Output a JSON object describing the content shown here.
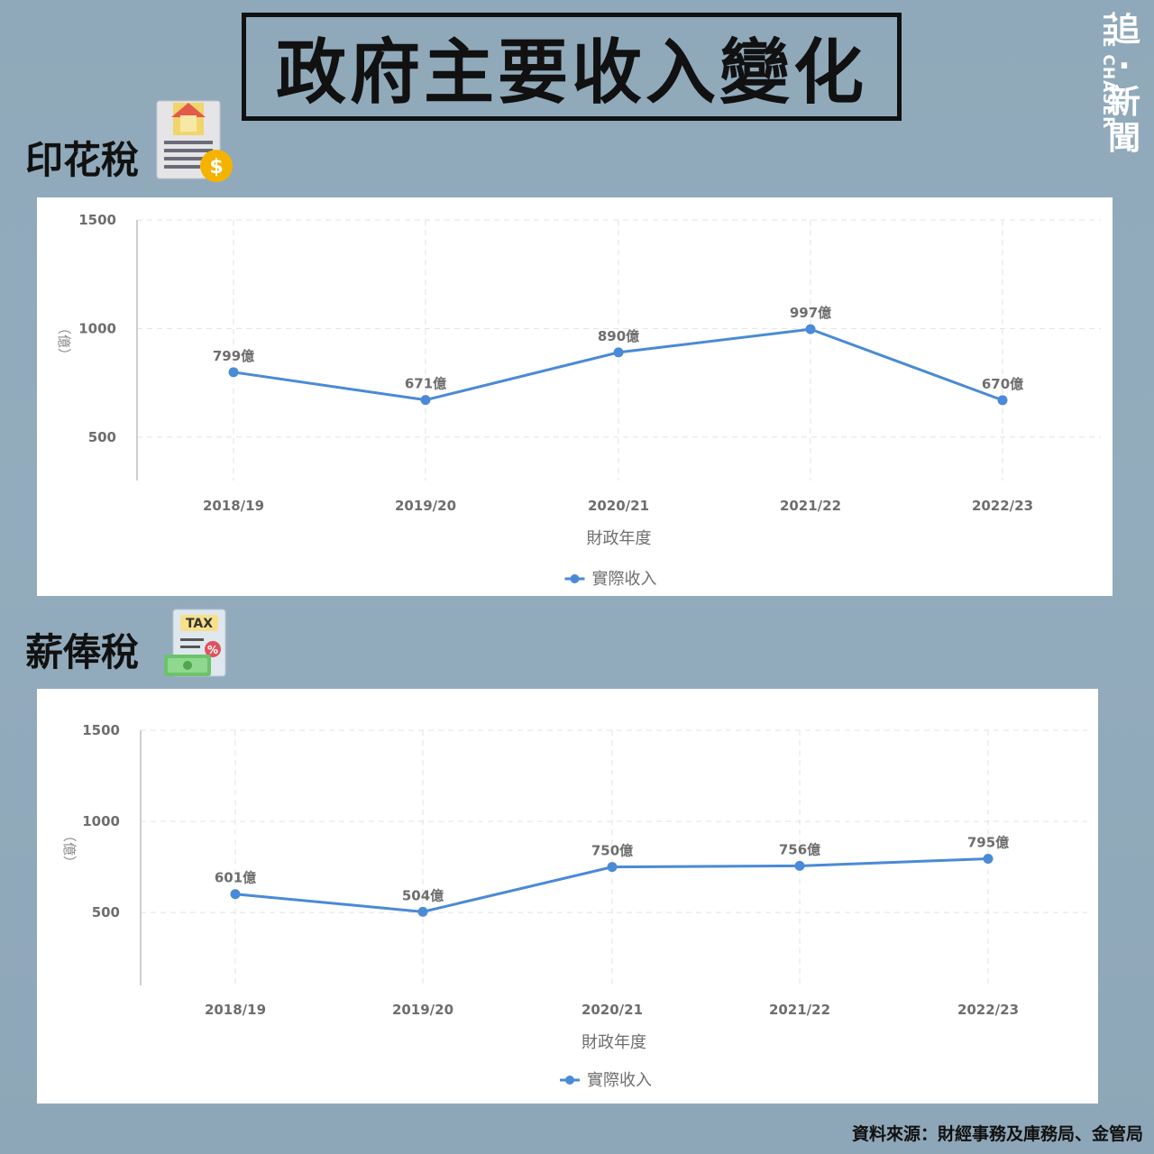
{
  "title": "政府主要收入變化",
  "brand": {
    "cn": "追·新聞",
    "en": "THE CHASER"
  },
  "source": "資料來源：財經事務及庫務局、金管局",
  "icons": {
    "stamp": "property-tax-document-icon",
    "salary": "tax-bill-money-icon"
  },
  "colors": {
    "series": "#4a8ad6",
    "background": "#8fa9ba"
  },
  "chart_data": [
    {
      "type": "line",
      "title": "印花稅",
      "categories": [
        "2018/19",
        "2019/20",
        "2020/21",
        "2021/22",
        "2022/23"
      ],
      "series": [
        {
          "name": "實際收入",
          "values": [
            799,
            671,
            890,
            997,
            670
          ]
        }
      ],
      "value_suffix": "億",
      "xlabel": "財政年度",
      "ylabel": "（億）",
      "yticks": [
        "500",
        "1000",
        "1500"
      ],
      "ylim": [
        300,
        1500
      ],
      "grid": true,
      "legend": "bottom-center"
    },
    {
      "type": "line",
      "title": "薪俸稅",
      "categories": [
        "2018/19",
        "2019/20",
        "2020/21",
        "2021/22",
        "2022/23"
      ],
      "series": [
        {
          "name": "實際收入",
          "values": [
            601,
            504,
            750,
            756,
            795
          ]
        }
      ],
      "value_suffix": "億",
      "xlabel": "財政年度",
      "ylabel": "（億）",
      "yticks": [
        "500",
        "1000",
        "1500"
      ],
      "ylim": [
        100,
        1500
      ],
      "grid": true,
      "legend": "bottom-center"
    }
  ]
}
